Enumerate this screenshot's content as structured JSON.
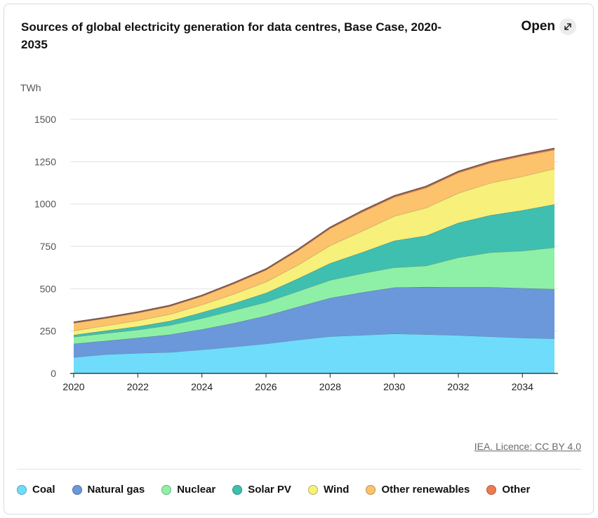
{
  "header": {
    "title": "Sources of global electricity generation for data centres, Base Case, 2020-2035",
    "open_label": "Open",
    "open_icon": "expand-icon"
  },
  "credit": "IEA. Licence: CC BY 4.0",
  "chart_data": {
    "type": "area",
    "stacked": true,
    "title": "Sources of global electricity generation for data centres, Base Case, 2020-2035",
    "ylabel": "TWh",
    "xlabel": "",
    "x": [
      2020,
      2021,
      2022,
      2023,
      2024,
      2025,
      2026,
      2027,
      2028,
      2029,
      2030,
      2031,
      2032,
      2033,
      2034,
      2035
    ],
    "xlim": [
      2020,
      2035
    ],
    "ylim": [
      0,
      1500
    ],
    "xticks": [
      "2020",
      "2022",
      "2024",
      "2026",
      "2028",
      "2030",
      "2032",
      "2034"
    ],
    "yticks": [
      "0",
      "250",
      "500",
      "750",
      "1000",
      "1250",
      "1500"
    ],
    "grid": true,
    "legend_position": "bottom",
    "series": [
      {
        "name": "Coal",
        "color": "#6fdcfb",
        "values": [
          95,
          112,
          120,
          125,
          140,
          157,
          175,
          198,
          218,
          226,
          234,
          230,
          225,
          217,
          210,
          205
        ]
      },
      {
        "name": "Natural gas",
        "color": "#6a98da",
        "values": [
          80,
          80,
          90,
          104,
          120,
          140,
          165,
          195,
          227,
          252,
          273,
          280,
          284,
          292,
          293,
          293
        ]
      },
      {
        "name": "Nuclear",
        "color": "#8ef0a6",
        "values": [
          40,
          45,
          47,
          55,
          65,
          75,
          80,
          92,
          105,
          112,
          118,
          125,
          175,
          205,
          220,
          245
        ]
      },
      {
        "name": "Solar PV",
        "color": "#3fbfb0",
        "values": [
          12,
          15,
          20,
          25,
          35,
          42,
          55,
          75,
          100,
          125,
          158,
          178,
          205,
          220,
          240,
          255
        ]
      },
      {
        "name": "Wind",
        "color": "#f7f07a",
        "values": [
          25,
          30,
          35,
          40,
          45,
          55,
          65,
          80,
          105,
          125,
          145,
          165,
          175,
          190,
          200,
          210
        ]
      },
      {
        "name": "Other renewables",
        "color": "#fcc26c",
        "values": [
          45,
          43,
          45,
          47,
          50,
          60,
          70,
          85,
          100,
          112,
          112,
          118,
          120,
          118,
          120,
          112
        ]
      },
      {
        "name": "Other",
        "color": "#ef7a50",
        "values": [
          5,
          5,
          5,
          5,
          5,
          6,
          6,
          7,
          7,
          8,
          8,
          8,
          8,
          8,
          8,
          8
        ]
      }
    ]
  }
}
